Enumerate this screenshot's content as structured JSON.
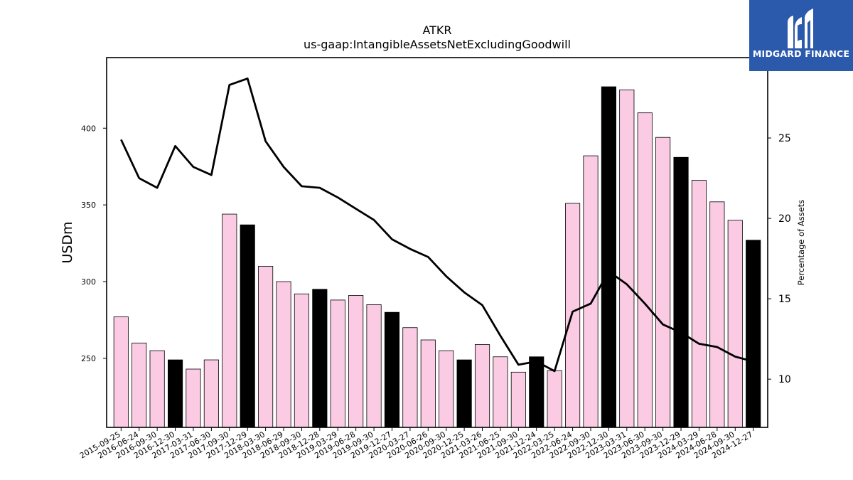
{
  "brand": {
    "name": "MIDGARD FINANCE",
    "logo_icon": "midgard-m-logo-icon",
    "background": "#2b5aad"
  },
  "chart_data": {
    "type": "bar",
    "title": "ATKR",
    "subtitle": "us-gaap:IntangibleAssetsNetExcludingGoodwill",
    "ylabel": "USDm",
    "y2label": "Percentage of Assets",
    "ylim": [
      205,
      446
    ],
    "y2lim": [
      7,
      30
    ],
    "yticks": [
      250,
      300,
      350,
      400
    ],
    "y2ticks": [
      10,
      15,
      20,
      25
    ],
    "colors": {
      "bar": "#fbcbe3",
      "bar_highlight": "#000000",
      "line": "#000000"
    },
    "categories": [
      "2015-09-25",
      "2016-06-24",
      "2016-09-30",
      "2016-12-30",
      "2017-03-31",
      "2017-06-30",
      "2017-09-30",
      "2017-12-29",
      "2018-03-30",
      "2018-06-29",
      "2018-09-30",
      "2018-12-28",
      "2019-03-29",
      "2019-06-28",
      "2019-09-30",
      "2019-12-27",
      "2020-03-27",
      "2020-06-26",
      "2020-09-30",
      "2020-12-25",
      "2021-03-26",
      "2021-06-25",
      "2021-09-30",
      "2021-12-24",
      "2022-03-25",
      "2022-06-24",
      "2022-09-30",
      "2022-12-30",
      "2023-03-31",
      "2023-06-30",
      "2023-09-30",
      "2023-12-29",
      "2024-03-29",
      "2024-06-28",
      "2024-09-30",
      "2024-12-27"
    ],
    "series": [
      {
        "type": "bar",
        "values": [
          277,
          260,
          255,
          249,
          243,
          249,
          344,
          337,
          310,
          300,
          292,
          295,
          288,
          291,
          285,
          280,
          270,
          262,
          255,
          249,
          259,
          251,
          241,
          251,
          242,
          351,
          382,
          427,
          425,
          410,
          394,
          381,
          366,
          352,
          340,
          327
        ],
        "highlighted": [
          false,
          false,
          false,
          true,
          false,
          false,
          false,
          true,
          false,
          false,
          false,
          true,
          false,
          false,
          false,
          true,
          false,
          false,
          false,
          true,
          false,
          false,
          false,
          true,
          false,
          false,
          false,
          true,
          false,
          false,
          false,
          true,
          false,
          false,
          false,
          true
        ]
      },
      {
        "type": "line",
        "axis": "right",
        "values": [
          24.9,
          22.5,
          21.9,
          24.5,
          23.2,
          22.7,
          28.3,
          28.7,
          24.8,
          23.2,
          22.0,
          21.9,
          21.3,
          20.6,
          19.9,
          18.7,
          18.1,
          17.6,
          16.4,
          15.4,
          14.6,
          12.7,
          10.9,
          11.1,
          10.5,
          14.2,
          14.7,
          16.7,
          15.9,
          14.7,
          13.4,
          12.9,
          12.2,
          12.0,
          11.4,
          11.1
        ]
      }
    ]
  }
}
